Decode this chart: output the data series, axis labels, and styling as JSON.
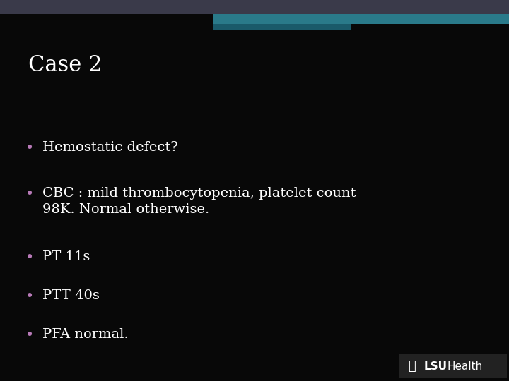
{
  "background_color": "#080808",
  "header_gray_color": "#3a3a4a",
  "header_teal_color": "#2a7a8a",
  "header_dark_teal": "#1a5a6a",
  "title": "Case 2",
  "title_color": "#ffffff",
  "title_fontsize": 22,
  "title_font": "serif",
  "title_fontweight": "normal",
  "bullet_color": "#b87ab8",
  "text_color": "#ffffff",
  "text_fontsize": 14,
  "bullet_items": [
    "Hemostatic defect?",
    "CBC : mild thrombocytopenia, platelet count\n98K. Normal otherwise.",
    "PT 11s",
    "PTT 40s",
    "PFA normal."
  ],
  "logo_bg_color": "#222222",
  "logo_text_bold": "LSU",
  "logo_text_light": "Health",
  "logo_color": "#ffffff",
  "fig_width": 7.2,
  "fig_height": 5.4,
  "dpi": 100
}
